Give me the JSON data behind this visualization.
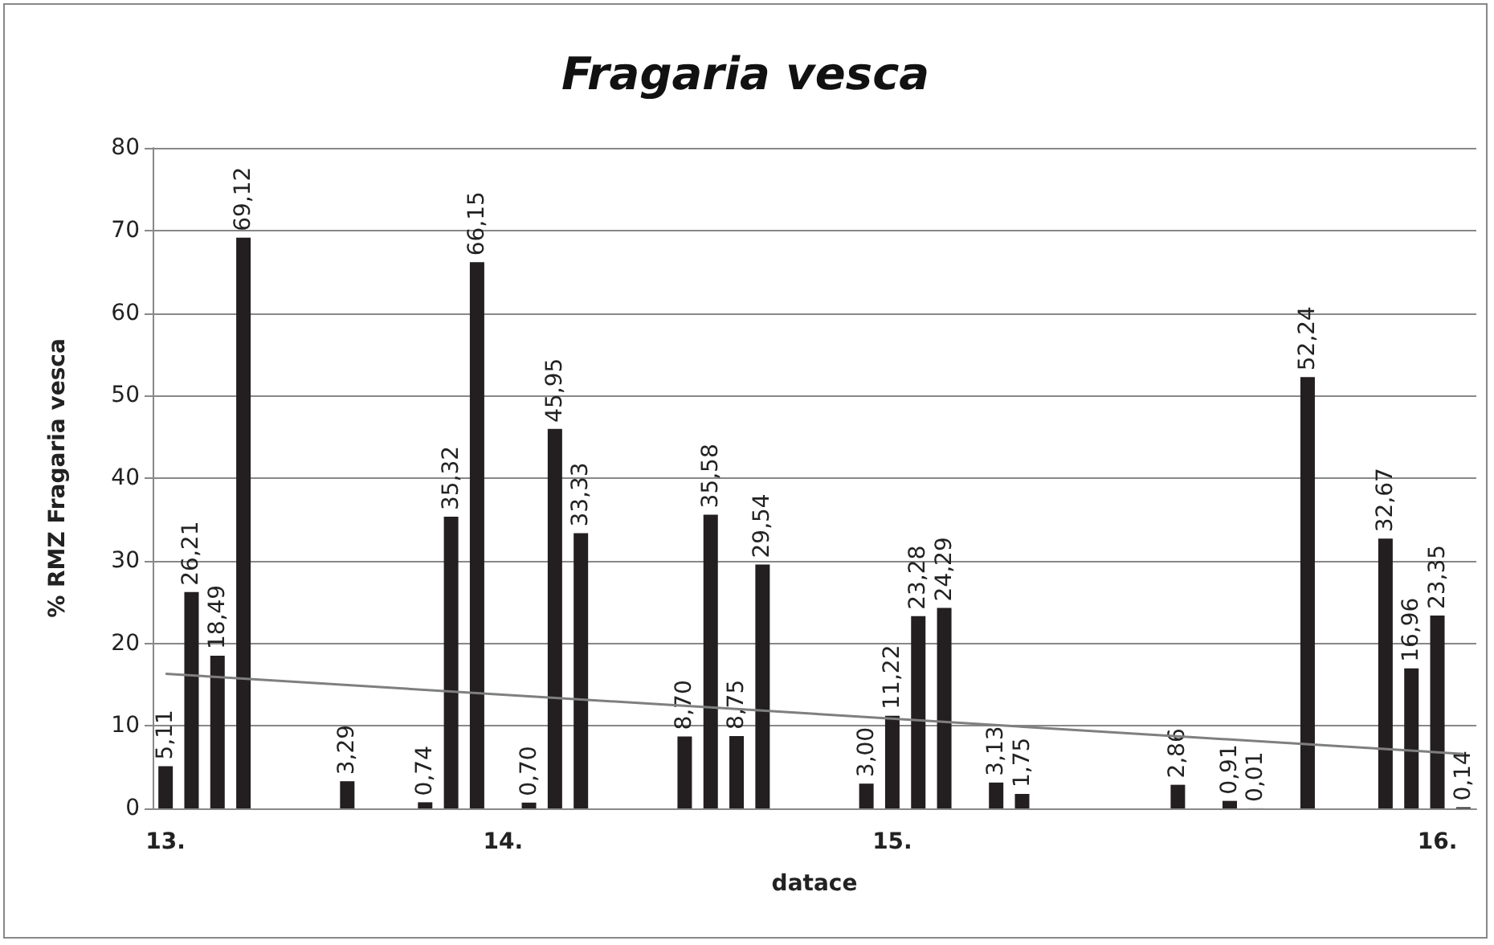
{
  "chart_data": {
    "type": "bar",
    "title": "Fragaria vesca",
    "xlabel": "datace",
    "ylabel": "% RMZ Fragaria vesca",
    "categories": [
      "13.",
      null,
      null,
      null,
      null,
      null,
      null,
      null,
      null,
      null,
      null,
      null,
      null,
      "14.",
      null,
      null,
      null,
      null,
      null,
      null,
      null,
      null,
      null,
      null,
      null,
      null,
      null,
      null,
      "15.",
      null,
      null,
      null,
      null,
      null,
      null,
      null,
      null,
      null,
      null,
      null,
      null,
      null,
      null,
      null,
      null,
      null,
      null,
      null,
      null,
      "16.",
      null
    ],
    "series": [
      {
        "color": "#231f20",
        "values": [
          5.11,
          26.21,
          18.49,
          69.12,
          null,
          null,
          null,
          3.29,
          null,
          null,
          0.74,
          35.32,
          66.15,
          null,
          0.7,
          45.95,
          33.33,
          null,
          null,
          null,
          8.7,
          35.58,
          8.75,
          29.54,
          null,
          null,
          null,
          3.0,
          11.22,
          23.28,
          24.29,
          null,
          3.13,
          1.75,
          null,
          null,
          null,
          null,
          null,
          2.86,
          null,
          0.91,
          0.01,
          null,
          52.24,
          null,
          null,
          32.67,
          16.96,
          23.35,
          0.14
        ],
        "value_labels": [
          "5,11",
          "26,21",
          "18,49",
          "69,12",
          null,
          null,
          null,
          "3,29",
          null,
          null,
          "0,74",
          "35,32",
          "66,15",
          null,
          "0,70",
          "45,95",
          "33,33",
          null,
          null,
          null,
          "8,70",
          "35,58",
          "8,75",
          "29,54",
          null,
          null,
          null,
          "3,00",
          "11,22",
          "23,28",
          "24,29",
          null,
          "3,13",
          "1,75",
          null,
          null,
          null,
          null,
          null,
          "2,86",
          null,
          "0,91",
          "0,01",
          null,
          "52,24",
          null,
          null,
          "32,67",
          "16,96",
          "23,35",
          "0,14"
        ]
      },
      {
        "type": "line",
        "color": "#7f7f7f",
        "marker": "none",
        "values": [
          16.3,
          null,
          null,
          null,
          null,
          null,
          null,
          null,
          null,
          null,
          null,
          null,
          null,
          null,
          null,
          null,
          null,
          null,
          null,
          null,
          null,
          null,
          null,
          null,
          null,
          null,
          null,
          null,
          null,
          null,
          null,
          null,
          null,
          null,
          null,
          null,
          null,
          null,
          null,
          null,
          null,
          null,
          null,
          null,
          null,
          null,
          null,
          null,
          null,
          null,
          6.6
        ]
      }
    ],
    "ylim": [
      0,
      80
    ],
    "yticks": [
      0,
      10,
      20,
      30,
      40,
      50,
      60,
      70,
      80
    ],
    "grid": "y"
  }
}
